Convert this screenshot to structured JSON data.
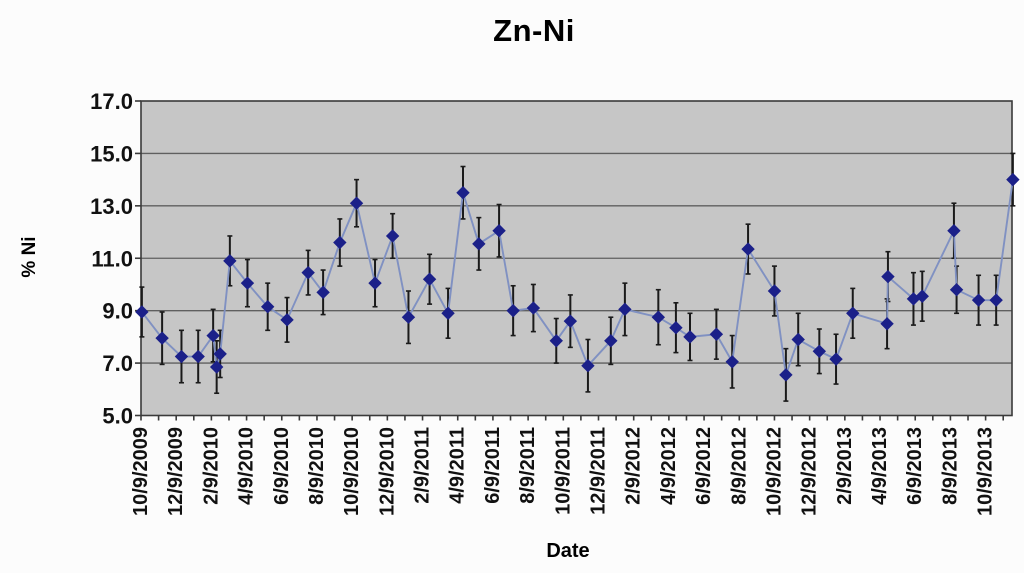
{
  "page": {
    "background": "#fcfcfc"
  },
  "chart_data": {
    "type": "line",
    "title": "Zn-Ni",
    "xlabel": "Date",
    "ylabel": "% Ni",
    "ylim": [
      5.0,
      17.0
    ],
    "yticks": [
      5.0,
      7.0,
      9.0,
      11.0,
      13.0,
      15.0,
      17.0
    ],
    "ytick_labels": [
      "5.0",
      "7.0",
      "9.0",
      "11.0",
      "13.0",
      "15.0",
      "17.0"
    ],
    "grid": "horizontal-only",
    "legend": "none",
    "plot_background": "#c6c6c6",
    "x_axis": {
      "unit": "months since first tick (10/9/2009)",
      "range_months": [
        0,
        49.5
      ],
      "minor_tick_every_months": 1,
      "labeled_tick_every_months": 2,
      "tick_labels": [
        "10/9/2009",
        "12/9/2009",
        "2/9/2010",
        "4/9/2010",
        "6/9/2010",
        "8/9/2010",
        "10/9/2010",
        "12/9/2010",
        "2/9/2011",
        "4/9/2011",
        "6/9/2011",
        "8/9/2011",
        "10/9/2011",
        "12/9/2011",
        "2/9/2012",
        "4/9/2012",
        "6/9/2012",
        "8/9/2012",
        "10/9/2012",
        "12/9/2012",
        "2/9/2013",
        "4/9/2013",
        "6/9/2013",
        "8/9/2013",
        "10/9/2013"
      ]
    },
    "series": [
      {
        "name": "% Ni",
        "marker": "diamond",
        "error_bars": "symmetric-vertical",
        "points_format": [
          "x_months",
          "y_percent_ni",
          "error_half_length"
        ],
        "points": [
          [
            0.05,
            8.95,
            0.95
          ],
          [
            1.2,
            7.95,
            1.0
          ],
          [
            2.3,
            7.25,
            1.0
          ],
          [
            3.25,
            7.25,
            1.0
          ],
          [
            4.1,
            8.05,
            1.0
          ],
          [
            4.3,
            6.85,
            1.0
          ],
          [
            4.5,
            7.35,
            0.9
          ],
          [
            5.05,
            10.9,
            0.95
          ],
          [
            6.05,
            10.05,
            0.9
          ],
          [
            7.2,
            9.15,
            0.9
          ],
          [
            8.3,
            8.65,
            0.85
          ],
          [
            9.5,
            10.45,
            0.85
          ],
          [
            10.35,
            9.7,
            0.85
          ],
          [
            11.3,
            11.6,
            0.9
          ],
          [
            12.25,
            13.1,
            0.9
          ],
          [
            13.3,
            10.05,
            0.9
          ],
          [
            14.3,
            11.85,
            0.85
          ],
          [
            15.2,
            8.75,
            1.0
          ],
          [
            16.4,
            10.2,
            0.95
          ],
          [
            17.45,
            8.9,
            0.95
          ],
          [
            18.3,
            13.5,
            1.0
          ],
          [
            19.2,
            11.55,
            1.0
          ],
          [
            20.35,
            12.05,
            1.0
          ],
          [
            21.15,
            9.0,
            0.95
          ],
          [
            22.3,
            9.1,
            0.9
          ],
          [
            23.6,
            7.85,
            0.85
          ],
          [
            24.4,
            8.6,
            1.0
          ],
          [
            25.4,
            6.9,
            1.0
          ],
          [
            26.7,
            7.85,
            0.9
          ],
          [
            27.5,
            9.05,
            1.0
          ],
          [
            29.4,
            8.75,
            1.05
          ],
          [
            30.4,
            8.35,
            0.95
          ],
          [
            31.2,
            8.0,
            0.9
          ],
          [
            32.7,
            8.1,
            0.95
          ],
          [
            33.6,
            7.05,
            1.0
          ],
          [
            34.5,
            11.35,
            0.95
          ],
          [
            36.0,
            9.75,
            0.95
          ],
          [
            36.65,
            6.55,
            1.0
          ],
          [
            37.35,
            7.9,
            1.0
          ],
          [
            38.55,
            7.45,
            0.85
          ],
          [
            39.5,
            7.15,
            0.95
          ],
          [
            40.45,
            8.9,
            0.95
          ],
          [
            42.4,
            8.5,
            0.95
          ],
          [
            42.45,
            10.3,
            0.95
          ],
          [
            43.9,
            9.45,
            1.0
          ],
          [
            44.4,
            9.55,
            0.95
          ],
          [
            46.2,
            12.05,
            1.05
          ],
          [
            46.35,
            9.8,
            0.9
          ],
          [
            47.6,
            9.4,
            0.95
          ],
          [
            48.6,
            9.4,
            0.95
          ],
          [
            49.55,
            14.0,
            1.0
          ]
        ]
      }
    ],
    "colors": {
      "marker": "#1b2089",
      "line": "#8091c2",
      "error_bar": "#1a1a1a",
      "plot_bg": "#c6c6c6",
      "grid_line": "#5f5f5f",
      "border": "#3a3a3a",
      "text": "#111111"
    }
  }
}
